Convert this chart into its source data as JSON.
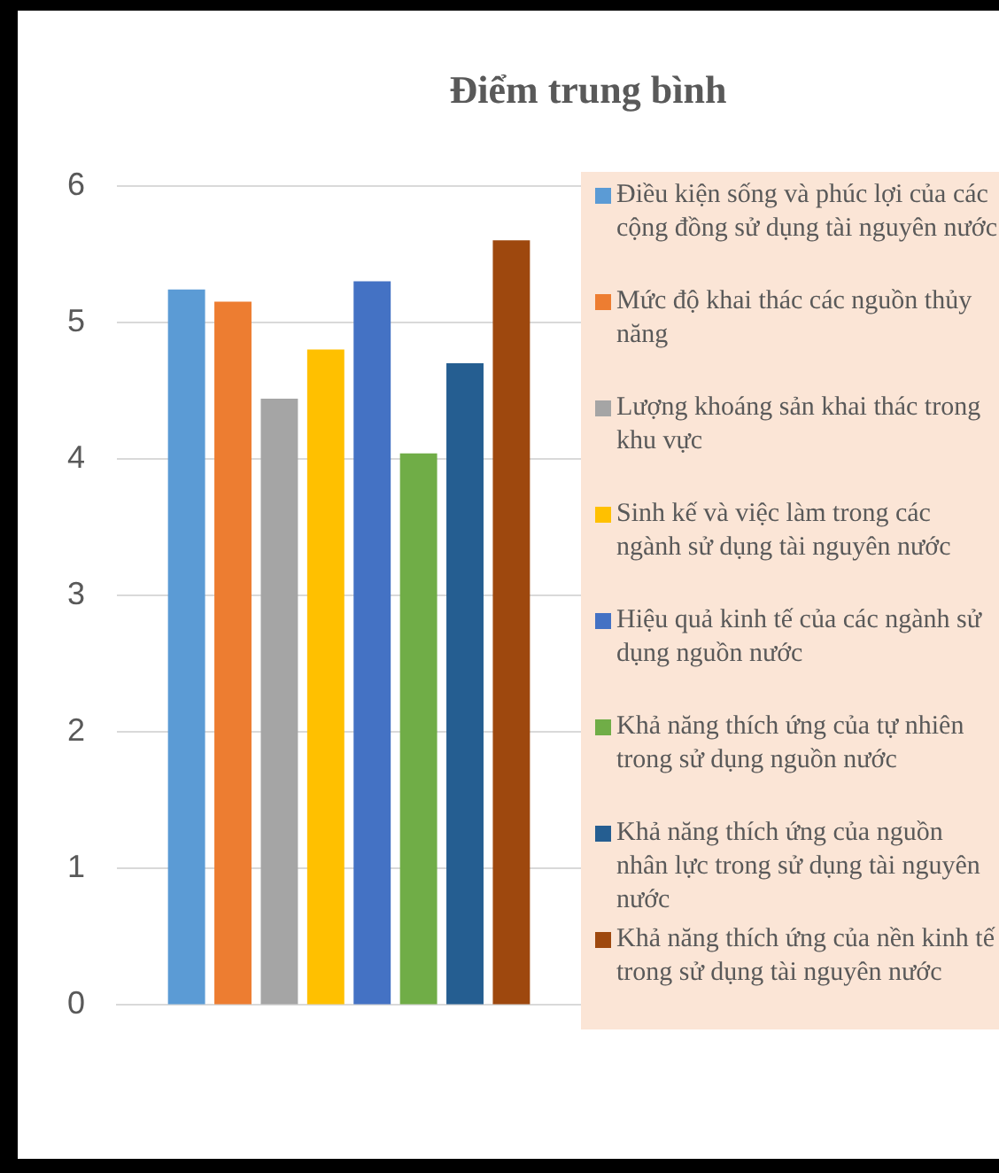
{
  "chart_data": {
    "type": "bar",
    "title": "Điểm trung bình",
    "categories": [
      null
    ],
    "series": [
      {
        "name": "Điều kiện sống và phúc lợi của các cộng đồng sử dụng tài nguyên nước",
        "color": "#5b9bd5",
        "values": [
          5.24
        ]
      },
      {
        "name": "Mức độ khai thác các nguồn thủy năng",
        "color": "#ed7d31",
        "values": [
          5.15
        ]
      },
      {
        "name": "Lượng khoáng sản khai thác trong khu vực",
        "color": "#a5a5a5",
        "values": [
          4.44
        ]
      },
      {
        "name": "Sinh kế và việc làm trong các ngành sử dụng tài nguyên nước",
        "color": "#ffc000",
        "values": [
          4.8
        ]
      },
      {
        "name": "Hiệu quả kinh tế của các ngành sử dụng nguồn nước",
        "color": "#4472c4",
        "values": [
          5.3
        ]
      },
      {
        "name": "Khả năng thích ứng của tự nhiên trong sử dụng nguồn nước",
        "color": "#70ad47",
        "values": [
          4.04
        ]
      },
      {
        "name": "Khả năng thích ứng của nguồn nhân lực trong sử dụng tài nguyên nước",
        "color": "#255e91",
        "values": [
          4.7
        ]
      },
      {
        "name": "Khả năng thích ứng của nền kinh tế trong sử dụng tài nguyên nước",
        "color": "#9e480e",
        "values": [
          5.6
        ]
      }
    ],
    "ylim": [
      0,
      6
    ],
    "yticks": [
      0,
      1,
      2,
      3,
      4,
      5,
      6
    ],
    "grid": "y",
    "legend": "right"
  }
}
